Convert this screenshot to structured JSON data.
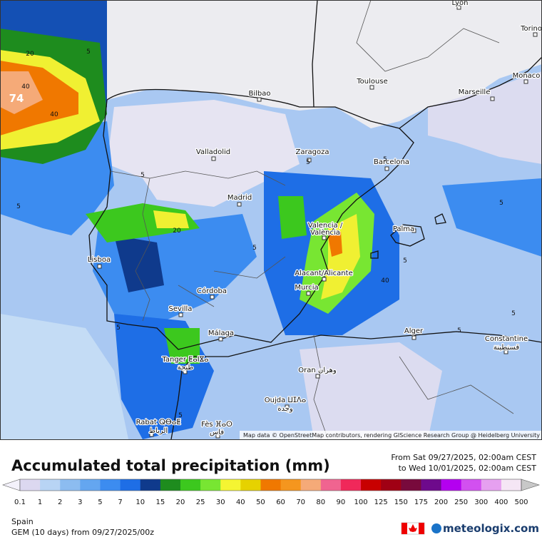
{
  "header": {
    "title": "Accumulated total precipitation (mm)",
    "from": "From Sat 09/27/2025, 02:00am CEST",
    "to": "to Wed 10/01/2025, 02:00am CEST"
  },
  "map": {
    "cities": [
      "Lyon",
      "Torino",
      "Monaco",
      "Toulouse",
      "Marseille",
      "Bilbao",
      "Valladolid",
      "Zaragoza",
      "Barcelona",
      "Madrid",
      "Valencia /",
      "València",
      "Palma",
      "Lisboa",
      "Alacant/Alicante",
      "Murcia",
      "Córdoba",
      "Sevilla",
      "Málaga",
      "Alger",
      "Constantine",
      "قسنطينة",
      "Tanger ⵟⴰⵏⴵⴰ",
      "طنجة",
      "Oran وهران",
      "Oujda ⵡⵊⴷⴰ",
      "وجدة",
      "Rabat ⵕⴱⴰⵟ",
      "الرباط",
      "Fès ⴼⴰⵙ",
      "فاس"
    ],
    "contours": [
      5,
      20,
      40,
      40,
      74,
      5,
      5,
      20,
      5,
      5,
      5,
      5,
      5,
      40,
      5,
      5,
      5,
      5
    ],
    "attribution": "Map data © OpenStreetMap contributors, rendering GIScience Research Group @ Heidelberg University"
  },
  "legend": {
    "labels": [
      0.1,
      1,
      2,
      3,
      5,
      7,
      10,
      15,
      20,
      25,
      30,
      40,
      50,
      60,
      70,
      80,
      90,
      100,
      125,
      150,
      175,
      200,
      250,
      300,
      400,
      500
    ],
    "below_color": "#f4f2fb",
    "colors": [
      "#dcd8f0",
      "#b8d4f4",
      "#8cbcf0",
      "#64a6f0",
      "#3c8cf0",
      "#1e6ee6",
      "#0f3a8c",
      "#1e8c1e",
      "#3cc81e",
      "#78e632",
      "#f5f532",
      "#e6d200",
      "#f07800",
      "#f5961e",
      "#f5aa78",
      "#f06490",
      "#f0285a",
      "#c80000",
      "#a00014",
      "#780a3c",
      "#6e0a8c",
      "#b400f0",
      "#d250f0",
      "#e6a0f0",
      "#f5e6f5"
    ],
    "above_color": "#c8c8c8"
  },
  "footer": {
    "region": "Spain",
    "model": "GEM (10 days) from 09/27/2025/00z",
    "brand": "meteologix.com"
  }
}
